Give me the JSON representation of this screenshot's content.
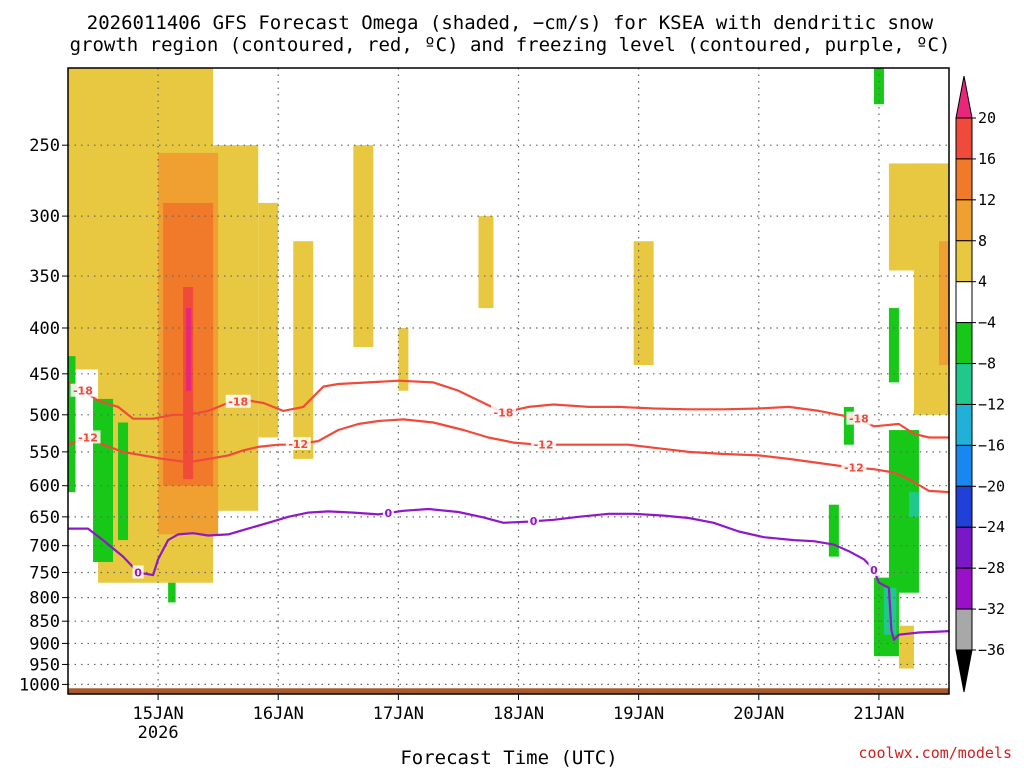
{
  "chart_data": {
    "type": "heatmap",
    "title": "2026011406 GFS Forecast Omega (shaded, −cm/s) for KSEA with dendritic snow",
    "subtitle": "growth region (contoured, red, ºC) and freezing level (contoured, purple, ºC)",
    "xlabel": "Forecast Time (UTC)",
    "ylabel": "",
    "x_range_hours_since_14JAN00Z": [
      6,
      182
    ],
    "y_axis_log_pressure": true,
    "ylim": [
      1025,
      205
    ],
    "yticks": [
      250,
      300,
      350,
      400,
      450,
      500,
      550,
      600,
      650,
      700,
      750,
      800,
      850,
      900,
      950,
      1000
    ],
    "xticks": [
      {
        "label": "15JAN",
        "sub": "2026",
        "hour": 24
      },
      {
        "label": "16JAN",
        "sub": "",
        "hour": 48
      },
      {
        "label": "17JAN",
        "sub": "",
        "hour": 72
      },
      {
        "label": "18JAN",
        "sub": "",
        "hour": 96
      },
      {
        "label": "19JAN",
        "sub": "",
        "hour": 120
      },
      {
        "label": "20JAN",
        "sub": "",
        "hour": 144
      },
      {
        "label": "21JAN",
        "sub": "",
        "hour": 168
      }
    ],
    "grid": true,
    "colorbar": {
      "levels": [
        "20",
        "16",
        "12",
        "8",
        "4",
        "−4",
        "−8",
        "−12",
        "−16",
        "−20",
        "−24",
        "−28",
        "−32",
        "−36"
      ],
      "colors_top_to_bottom": [
        "#e8267a",
        "#f04a3a",
        "#f07a2a",
        "#f0a030",
        "#e8c840",
        "#ffffff",
        "#18c818",
        "#20c88c",
        "#20b0d8",
        "#1888f0",
        "#2040d8",
        "#7a18c8",
        "#9a10c8",
        "#a8a8a8",
        "#000000"
      ]
    },
    "omega_shading": [
      {
        "h0": 6,
        "h1": 12,
        "p0": 205,
        "p1": 445,
        "c": "#e8c840"
      },
      {
        "h0": 12,
        "h1": 35,
        "p0": 205,
        "p1": 770,
        "c": "#e8c840"
      },
      {
        "h0": 35,
        "h1": 44,
        "p0": 250,
        "p1": 640,
        "c": "#e8c840"
      },
      {
        "h0": 44,
        "h1": 48,
        "p0": 290,
        "p1": 530,
        "c": "#e8c840"
      },
      {
        "h0": 51,
        "h1": 55,
        "p0": 320,
        "p1": 560,
        "c": "#e8c840"
      },
      {
        "h0": 63,
        "h1": 67,
        "p0": 250,
        "p1": 420,
        "c": "#e8c840"
      },
      {
        "h0": 72,
        "h1": 74,
        "p0": 400,
        "p1": 470,
        "c": "#e8c840"
      },
      {
        "h0": 88,
        "h1": 91,
        "p0": 300,
        "p1": 380,
        "c": "#e8c840"
      },
      {
        "h0": 119,
        "h1": 123,
        "p0": 320,
        "p1": 440,
        "c": "#e8c840"
      },
      {
        "h0": 170,
        "h1": 180,
        "p0": 262,
        "p1": 345,
        "c": "#e8c840"
      },
      {
        "h0": 175,
        "h1": 182,
        "p0": 262,
        "p1": 500,
        "c": "#e8c840"
      },
      {
        "h0": 172,
        "h1": 175,
        "p0": 860,
        "p1": 960,
        "c": "#e8c840"
      },
      {
        "h0": 24,
        "h1": 36,
        "p0": 255,
        "p1": 680,
        "c": "#f0a030"
      },
      {
        "h0": 25,
        "h1": 35,
        "p0": 290,
        "p1": 600,
        "c": "#f07a2a"
      },
      {
        "h0": 180,
        "h1": 182,
        "p0": 320,
        "p1": 440,
        "c": "#f0a030"
      },
      {
        "h0": 29,
        "h1": 31,
        "p0": 360,
        "p1": 590,
        "c": "#f04a3a"
      },
      {
        "h0": 29.6,
        "h1": 30.6,
        "p0": 380,
        "p1": 470,
        "c": "#e8267a"
      },
      {
        "h0": 6,
        "h1": 7.5,
        "p0": 430,
        "p1": 610,
        "c": "#18c818"
      },
      {
        "h0": 11,
        "h1": 15,
        "p0": 480,
        "p1": 730,
        "c": "#18c818"
      },
      {
        "h0": 16,
        "h1": 18,
        "p0": 510,
        "p1": 690,
        "c": "#18c818"
      },
      {
        "h0": 26,
        "h1": 27.5,
        "p0": 770,
        "p1": 810,
        "c": "#18c818"
      },
      {
        "h0": 161,
        "h1": 163,
        "p0": 490,
        "p1": 540,
        "c": "#18c818"
      },
      {
        "h0": 158,
        "h1": 160,
        "p0": 630,
        "p1": 720,
        "c": "#18c818"
      },
      {
        "h0": 167,
        "h1": 169,
        "p0": 205,
        "p1": 225,
        "c": "#18c818"
      },
      {
        "h0": 170,
        "h1": 172,
        "p0": 380,
        "p1": 460,
        "c": "#18c818"
      },
      {
        "h0": 170,
        "h1": 176,
        "p0": 520,
        "p1": 790,
        "c": "#18c818"
      },
      {
        "h0": 167,
        "h1": 172,
        "p0": 760,
        "p1": 930,
        "c": "#18c818"
      },
      {
        "h0": 174,
        "h1": 176,
        "p0": 610,
        "p1": 650,
        "c": "#20c88c"
      },
      {
        "h0": 169,
        "h1": 171.5,
        "p0": 780,
        "p1": 880,
        "c": "#20c88c"
      }
    ],
    "ground_band": {
      "p0": 1010,
      "p1": 1025,
      "c": "#a85a2a"
    },
    "series": [
      {
        "name": "-18",
        "color": "#f04a3a",
        "label_hours": [
          9,
          40,
          93,
          164
        ],
        "points": [
          [
            6,
            460
          ],
          [
            9,
            470
          ],
          [
            12,
            482
          ],
          [
            16,
            490
          ],
          [
            19,
            505
          ],
          [
            23,
            505
          ],
          [
            27,
            500
          ],
          [
            30,
            500
          ],
          [
            34,
            495
          ],
          [
            38,
            485
          ],
          [
            42,
            482
          ],
          [
            45,
            485
          ],
          [
            49,
            495
          ],
          [
            53,
            490
          ],
          [
            57,
            465
          ],
          [
            60,
            462
          ],
          [
            66,
            460
          ],
          [
            72,
            458
          ],
          [
            79,
            460
          ],
          [
            84,
            470
          ],
          [
            89,
            485
          ],
          [
            93,
            497
          ],
          [
            98,
            490
          ],
          [
            103,
            487
          ],
          [
            110,
            490
          ],
          [
            116,
            490
          ],
          [
            123,
            492
          ],
          [
            130,
            493
          ],
          [
            137,
            493
          ],
          [
            144,
            492
          ],
          [
            150,
            490
          ],
          [
            156,
            495
          ],
          [
            160,
            500
          ],
          [
            164,
            505
          ],
          [
            167,
            515
          ],
          [
            172,
            512
          ],
          [
            175,
            525
          ],
          [
            178,
            530
          ],
          [
            182,
            530
          ]
        ]
      },
      {
        "name": "-12",
        "color": "#f04a3a",
        "label_hours": [
          10,
          52,
          101,
          163
        ],
        "points": [
          [
            6,
            540
          ],
          [
            10,
            530
          ],
          [
            13,
            540
          ],
          [
            17,
            550
          ],
          [
            21,
            555
          ],
          [
            25,
            560
          ],
          [
            30,
            565
          ],
          [
            34,
            560
          ],
          [
            38,
            555
          ],
          [
            41,
            548
          ],
          [
            44,
            543
          ],
          [
            48,
            540
          ],
          [
            51,
            540
          ],
          [
            56,
            535
          ],
          [
            60,
            520
          ],
          [
            64,
            512
          ],
          [
            68,
            508
          ],
          [
            73,
            506
          ],
          [
            79,
            510
          ],
          [
            85,
            520
          ],
          [
            90,
            530
          ],
          [
            95,
            537
          ],
          [
            100,
            540
          ],
          [
            106,
            540
          ],
          [
            112,
            540
          ],
          [
            118,
            540
          ],
          [
            124,
            545
          ],
          [
            130,
            550
          ],
          [
            137,
            553
          ],
          [
            144,
            555
          ],
          [
            150,
            560
          ],
          [
            156,
            566
          ],
          [
            162,
            572
          ],
          [
            167,
            575
          ],
          [
            171,
            580
          ],
          [
            174,
            590
          ],
          [
            178,
            608
          ],
          [
            182,
            610
          ]
        ]
      },
      {
        "name": "0",
        "color": "#8f18c8",
        "label_hours": [
          20,
          70,
          99,
          167
        ],
        "points": [
          [
            6,
            670
          ],
          [
            10,
            670
          ],
          [
            13,
            690
          ],
          [
            17,
            720
          ],
          [
            20,
            750
          ],
          [
            23,
            755
          ],
          [
            24,
            725
          ],
          [
            26,
            690
          ],
          [
            28,
            680
          ],
          [
            31,
            678
          ],
          [
            34,
            682
          ],
          [
            38,
            680
          ],
          [
            42,
            670
          ],
          [
            46,
            660
          ],
          [
            50,
            650
          ],
          [
            54,
            643
          ],
          [
            58,
            641
          ],
          [
            63,
            643
          ],
          [
            68,
            646
          ],
          [
            73,
            640
          ],
          [
            78,
            637
          ],
          [
            84,
            642
          ],
          [
            89,
            651
          ],
          [
            93,
            660
          ],
          [
            98,
            658
          ],
          [
            103,
            655
          ],
          [
            108,
            650
          ],
          [
            114,
            645
          ],
          [
            119,
            645
          ],
          [
            125,
            648
          ],
          [
            130,
            652
          ],
          [
            135,
            660
          ],
          [
            140,
            675
          ],
          [
            145,
            685
          ],
          [
            151,
            690
          ],
          [
            155,
            692
          ],
          [
            159,
            698
          ],
          [
            162,
            710
          ],
          [
            165,
            725
          ],
          [
            167,
            745
          ],
          [
            168,
            770
          ],
          [
            170,
            780
          ],
          [
            170.5,
            870
          ],
          [
            171,
            892
          ],
          [
            172,
            880
          ],
          [
            176,
            875
          ],
          [
            180,
            873
          ],
          [
            182,
            872
          ]
        ]
      }
    ]
  },
  "footer": {
    "credit": "coolwx.com/models"
  }
}
